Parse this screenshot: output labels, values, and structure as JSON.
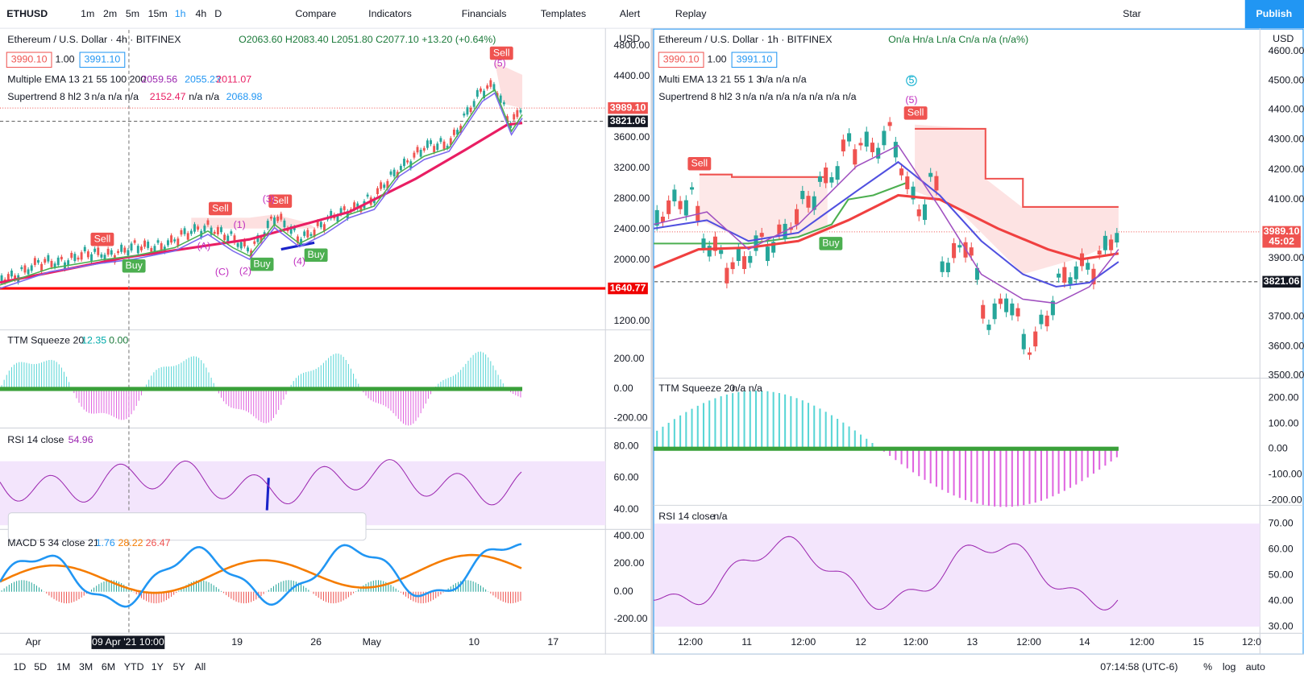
{
  "toolbar": {
    "symbol": "ETHUSD",
    "intervals": [
      "1m",
      "2m",
      "5m",
      "15m",
      "1h",
      "4h",
      "D"
    ],
    "buttons": [
      "Compare",
      "Indicators",
      "Financials",
      "Templates",
      "Alert",
      "Replay"
    ],
    "star": "Star",
    "publish": "Publish"
  },
  "left_chart": {
    "title": "Ethereum / U.S. Dollar · 4h · BITFINEX",
    "ohlc": "O2063.60 H2083.40 L2051.80 C2077.10 +13.20 (+0.64%)",
    "bid": "3990.10",
    "spread": "1.00",
    "ask": "3991.10",
    "ema_name": "Multiple EMA 13 21 55 100 200",
    "ema_values": [
      "2059.56",
      "2055.23",
      "2011.07"
    ],
    "st_name": "Supertrend 8 hl2 3",
    "st_values": [
      "n/a n/a n/a",
      "2152.47",
      "n/a n/a",
      "2068.98"
    ],
    "ttm_name": "TTM Squeeze 20",
    "ttm_values": [
      "12.35",
      "0.00"
    ],
    "rsi_name": "RSI 14 close",
    "rsi_value": "54.96",
    "macd_name": "MACD 5 34 close 21",
    "macd_values": [
      "1.76",
      "28.22",
      "26.47"
    ],
    "currency": "USD",
    "price_ticks": [
      "4800.00",
      "4400.00",
      "3600.00",
      "3200.00",
      "2800.00",
      "2400.00",
      "2000.00",
      "1200.00"
    ],
    "price_badges": [
      "3989.10",
      "3821.06",
      "1640.77"
    ],
    "ttm_ticks": [
      "200.00",
      "0.00",
      "-200.00"
    ],
    "rsi_ticks": [
      "80.00",
      "60.00",
      "40.00"
    ],
    "macd_ticks": [
      "400.00",
      "200.00",
      "0.00",
      "-200.00"
    ],
    "time_ticks": [
      "Apr",
      "19",
      "26",
      "May",
      "10",
      "17"
    ],
    "crosshair_time": "09 Apr '21 10:00",
    "signals": [
      "Sell",
      "Sell",
      "Sell",
      "Sell",
      "Buy",
      "Buy",
      "Buy"
    ],
    "waves": [
      "(1)",
      "(A)",
      "(C)",
      "(2)",
      "(4)",
      "(3)",
      "(5)"
    ]
  },
  "right_chart": {
    "title": "Ethereum / U.S. Dollar · 1h · BITFINEX",
    "ohlc": "On/a Hn/a Ln/a Cn/a n/a (n/a%)",
    "bid": "3990.10",
    "spread": "1.00",
    "ask": "3991.10",
    "ema_name": "Multi EMA 13 21 55 1 3",
    "ema_values": "n/a n/a n/a",
    "st_name": "Supertrend 8 hl2 3",
    "st_values": "n/a n/a n/a n/a n/a n/a n/a",
    "ttm_name": "TTM Squeeze 20",
    "ttm_values": "n/a n/a",
    "rsi_name": "RSI 14 close",
    "rsi_value": "n/a",
    "currency": "USD",
    "price_ticks": [
      "4600.00",
      "4500.00",
      "4400.00",
      "4300.00",
      "4200.00",
      "4100.00",
      "3900.00",
      "3700.00",
      "3600.00",
      "3500.00"
    ],
    "price_badges": [
      "3989.10",
      "45:02",
      "3821.06"
    ],
    "ttm_ticks": [
      "200.00",
      "100.00",
      "0.00",
      "-100.00",
      "-200.00"
    ],
    "rsi_ticks": [
      "70.00",
      "60.00",
      "50.00",
      "40.00",
      "30.00"
    ],
    "time_ticks": [
      "12:00",
      "11",
      "12:00",
      "12",
      "12:00",
      "13",
      "12:00",
      "14",
      "12:00",
      "15",
      "12:0"
    ],
    "signals": [
      "Sell",
      "Sell",
      "Buy"
    ],
    "waves": [
      "5",
      "(5)"
    ]
  },
  "bottom_bar": {
    "ranges": [
      "1D",
      "5D",
      "1M",
      "3M",
      "6M",
      "YTD",
      "1Y",
      "5Y",
      "All"
    ],
    "clock": "07:14:58 (UTC-6)",
    "options": [
      "%",
      "log",
      "auto"
    ]
  }
}
